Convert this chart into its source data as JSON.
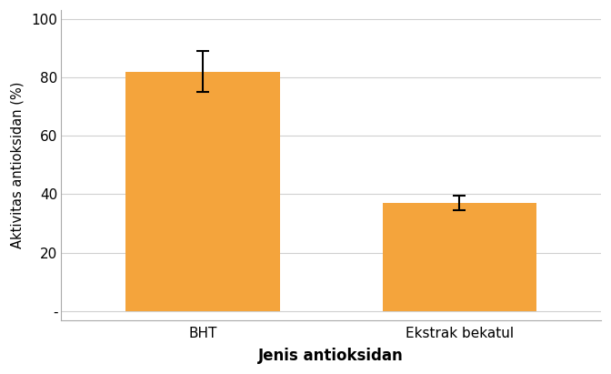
{
  "categories": [
    "BHT",
    "Ekstrak bekatul"
  ],
  "values": [
    82.0,
    37.0
  ],
  "errors": [
    7.0,
    2.5
  ],
  "bar_color": "#F4A43C",
  "bar_edge_color": "#F4A43C",
  "bar_width": 0.6,
  "title": "",
  "xlabel": "Jenis antioksidan",
  "ylabel": "Aktivitas antioksidan (%)",
  "ylim": [
    -3,
    103
  ],
  "yticks": [
    0,
    20,
    40,
    60,
    80,
    100
  ],
  "ytick_labels": [
    "-",
    "20",
    "40",
    "60",
    "80",
    "100"
  ],
  "background_color": "#ffffff",
  "grid_color": "#d0d0d0",
  "bar_positions": [
    0,
    1
  ],
  "xlim": [
    -0.55,
    1.55
  ],
  "figsize": [
    6.72,
    4.11
  ],
  "dpi": 100
}
